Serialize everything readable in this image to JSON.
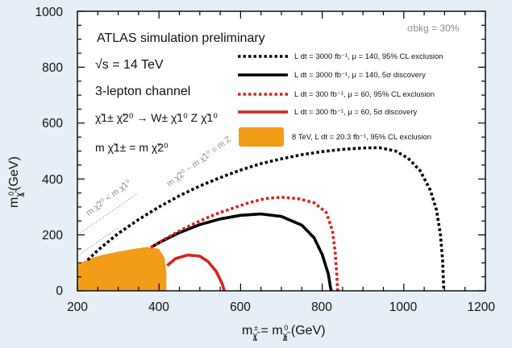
{
  "chart_data": {
    "type": "line",
    "title": "ATLAS simulation preliminary",
    "xlabel": "m χ̃1± = m χ̃2⁰ (GeV)",
    "xlabel_parts": {
      "m": "m",
      "p1": "χ̃",
      "s1": "±",
      "i1": "1",
      "eq": " = m",
      "p2": "χ̃",
      "s2": "0",
      "i2": "2",
      "tail": " (GeV)"
    },
    "ylabel": "m χ̃1⁰ (GeV)",
    "ylabel_parts": {
      "m": "m",
      "p": "χ̃",
      "s": "0",
      "i": "1",
      "tail": "(GeV)"
    },
    "xlim": [
      200,
      1200
    ],
    "ylim": [
      0,
      1000
    ],
    "xticks": [
      200,
      400,
      600,
      800,
      1000,
      1200
    ],
    "yticks": [
      0,
      200,
      400,
      600,
      800,
      1000
    ],
    "xtick_labels": [
      "200",
      "400",
      "600",
      "800",
      "1000",
      "1200"
    ],
    "ytick_labels": [
      "0",
      "200",
      "400",
      "600",
      "800",
      "1000"
    ],
    "annotations": {
      "sqrt_s": "√s = 14 TeV",
      "channel": "3-lepton channel",
      "process": "χ̃1± χ̃2⁰ → W± χ̃1⁰ Z χ̃1⁰",
      "mass_eq": "m χ̃1± = m χ̃2⁰",
      "sigma_bkg": "σbkg = 30%",
      "diag1": "m χ̃2⁰ < m χ̃1⁰",
      "diag2": "m χ̃2⁰ − m χ̃1⁰ = m Z"
    },
    "legend_position": "top-right",
    "series": [
      {
        "name": "L dt = 3000 fb⁻¹, μ = 140, 95% CL exclusion",
        "color": "#000000",
        "dashed": true,
        "x": [
          225,
          250,
          300,
          350,
          400,
          450,
          500,
          550,
          600,
          650,
          700,
          750,
          800,
          850,
          900,
          940,
          980,
          1010,
          1040,
          1065,
          1080,
          1090,
          1095,
          1097,
          1098
        ],
        "y": [
          110,
          145,
          205,
          255,
          300,
          340,
          375,
          405,
          432,
          455,
          472,
          487,
          498,
          506,
          511,
          512,
          500,
          475,
          430,
          360,
          290,
          200,
          110,
          40,
          0
        ]
      },
      {
        "name": "L dt = 3000 fb⁻¹, μ = 140, 5σ discovery",
        "color": "#000000",
        "dashed": false,
        "x": [
          380,
          400,
          450,
          500,
          550,
          600,
          650,
          700,
          750,
          780,
          800,
          815,
          820,
          822
        ],
        "y": [
          155,
          172,
          208,
          237,
          257,
          270,
          275,
          266,
          235,
          190,
          130,
          60,
          15,
          0
        ]
      },
      {
        "name": "L dt = 300 fb⁻¹, μ = 60, 95% CL exclusion",
        "color": "#d8231b",
        "dashed": true,
        "x": [
          380,
          420,
          460,
          500,
          540,
          580,
          620,
          660,
          700,
          740,
          780,
          810,
          825,
          832,
          836,
          838
        ],
        "y": [
          155,
          190,
          222,
          250,
          275,
          295,
          315,
          330,
          335,
          330,
          315,
          280,
          215,
          135,
          50,
          0
        ]
      },
      {
        "name": "L dt = 300 fb⁻¹, μ = 60, 5σ discovery",
        "color": "#d8231b",
        "dashed": false,
        "x": [
          420,
          440,
          470,
          500,
          520,
          540,
          555,
          560
        ],
        "y": [
          90,
          115,
          128,
          124,
          105,
          70,
          25,
          0
        ]
      },
      {
        "name": "8 TeV, L dt = 20.3 fb⁻¹, 95% CL exclusion",
        "color": "#f39c18",
        "type": "area",
        "x": [
          200,
          230,
          260,
          300,
          340,
          370,
          400,
          413,
          418,
          418,
          200
        ],
        "y": [
          95,
          115,
          128,
          140,
          150,
          157,
          150,
          120,
          70,
          0,
          0
        ]
      }
    ]
  }
}
